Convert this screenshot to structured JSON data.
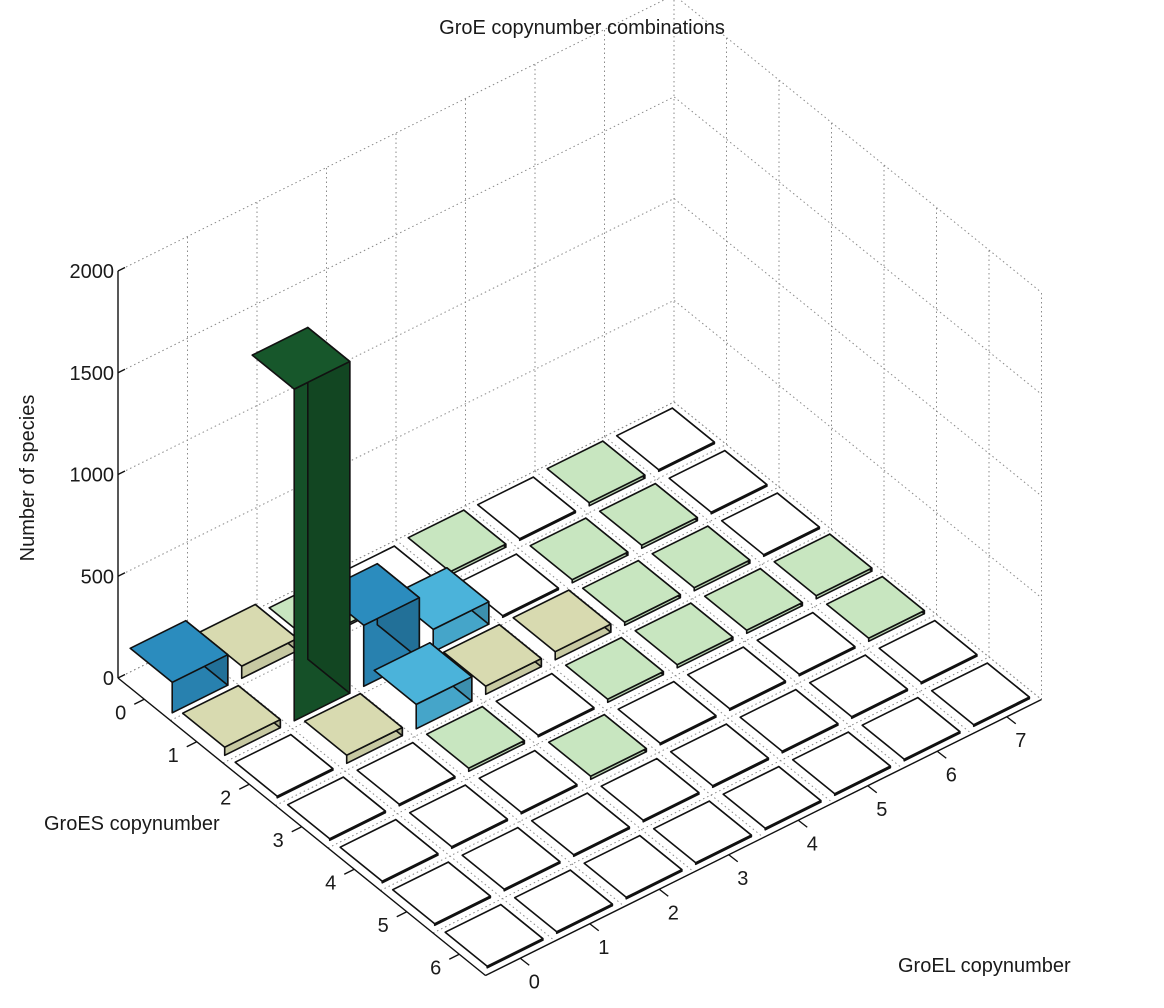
{
  "chart_data": {
    "type": "bar3d",
    "title": "GroE copynumber combinations",
    "zlabel": "Number of species",
    "xlabel": "GroEL copynumber",
    "ylabel": "GroES copynumber",
    "zlim": [
      0,
      2000
    ],
    "z_ticks": [
      "0",
      "500",
      "1000",
      "1500",
      "2000"
    ],
    "groel_ticks": [
      "0",
      "1",
      "2",
      "3",
      "4",
      "5",
      "6",
      "7"
    ],
    "groes_ticks": [
      "0",
      "1",
      "2",
      "3",
      "4",
      "5",
      "6"
    ],
    "grid": true,
    "bars": [
      {
        "groel": 0,
        "groes": 0,
        "value": 150,
        "color": "#2b8cbe"
      },
      {
        "groel": 0,
        "groes": 1,
        "value": 40,
        "color": "#d8dab0"
      },
      {
        "groel": 1,
        "groes": 0,
        "value": 60,
        "color": "#d8dab0"
      },
      {
        "groel": 1,
        "groes": 1,
        "value": 1630,
        "color": "#17572b"
      },
      {
        "groel": 1,
        "groes": 2,
        "value": 40,
        "color": "#d8dab0"
      },
      {
        "groel": 2,
        "groes": 0,
        "value": 10,
        "color": "#c8e6c0"
      },
      {
        "groel": 2,
        "groes": 1,
        "value": 300,
        "color": "#2b8cbe"
      },
      {
        "groel": 2,
        "groes": 2,
        "value": 120,
        "color": "#4bb3da"
      },
      {
        "groel": 3,
        "groes": 1,
        "value": 110,
        "color": "#4bb3da"
      },
      {
        "groel": 3,
        "groes": 2,
        "value": 40,
        "color": "#d8dab0"
      },
      {
        "groel": 4,
        "groes": 0,
        "value": 15,
        "color": "#c8e6c0"
      },
      {
        "groel": 4,
        "groes": 2,
        "value": 40,
        "color": "#d8dab0"
      },
      {
        "groel": 2,
        "groes": 3,
        "value": 15,
        "color": "#c8e6c0"
      },
      {
        "groel": 3,
        "groes": 4,
        "value": 15,
        "color": "#c8e6c0"
      },
      {
        "groel": 4,
        "groes": 3,
        "value": 15,
        "color": "#c8e6c0"
      },
      {
        "groel": 5,
        "groes": 1,
        "value": 15,
        "color": "#c8e6c0"
      },
      {
        "groel": 5,
        "groes": 2,
        "value": 15,
        "color": "#c8e6c0"
      },
      {
        "groel": 5,
        "groes": 3,
        "value": 15,
        "color": "#c8e6c0"
      },
      {
        "groel": 6,
        "groes": 0,
        "value": 15,
        "color": "#c8e6c0"
      },
      {
        "groel": 6,
        "groes": 1,
        "value": 15,
        "color": "#c8e6c0"
      },
      {
        "groel": 6,
        "groes": 2,
        "value": 15,
        "color": "#c8e6c0"
      },
      {
        "groel": 6,
        "groes": 3,
        "value": 15,
        "color": "#c8e6c0"
      },
      {
        "groel": 7,
        "groes": 3,
        "value": 15,
        "color": "#c8e6c0"
      },
      {
        "groel": 7,
        "groes": 4,
        "value": 15,
        "color": "#c8e6c0"
      }
    ],
    "empty_color": "#ffffff"
  }
}
